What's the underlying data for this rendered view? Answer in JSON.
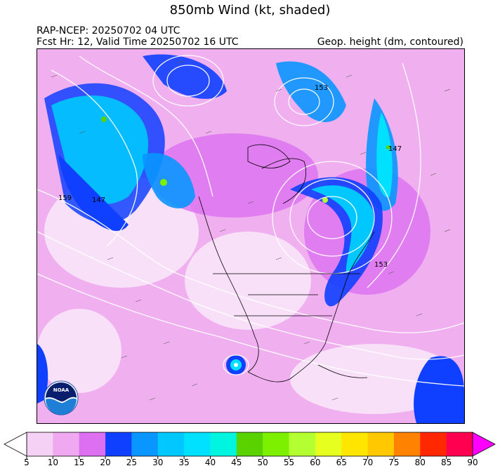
{
  "header": {
    "title": "850mb Wind (kt, shaded)",
    "line1": "RAP-NCEP: 20250702 04 UTC",
    "line2": "Fcst Hr: 12, Valid Time 20250702 16 UTC",
    "right": "Geop. height (dm, contoured)"
  },
  "map": {
    "contour_labels": [
      "147",
      "153",
      "159",
      "153",
      "147"
    ],
    "logo_text": "NOAA"
  },
  "colorbar": {
    "levels": [
      5,
      10,
      15,
      20,
      25,
      30,
      35,
      40,
      45,
      50,
      55,
      60,
      65,
      70,
      75,
      80,
      85,
      90
    ],
    "colors": [
      "#f5d2f5",
      "#f0a8f0",
      "#dc70f0",
      "#1040ff",
      "#0a96ff",
      "#00c8ff",
      "#00e0ff",
      "#00f5e0",
      "#5ad200",
      "#7df000",
      "#b4ff32",
      "#e6ff1e",
      "#ffe600",
      "#ffc800",
      "#ff8200",
      "#ff2800",
      "#ff0050",
      "#ff00ff"
    ],
    "labels": [
      "5",
      "10",
      "15",
      "20",
      "25",
      "30",
      "35",
      "40",
      "45",
      "50",
      "55",
      "60",
      "65",
      "70",
      "75",
      "80",
      "85",
      "90"
    ]
  }
}
